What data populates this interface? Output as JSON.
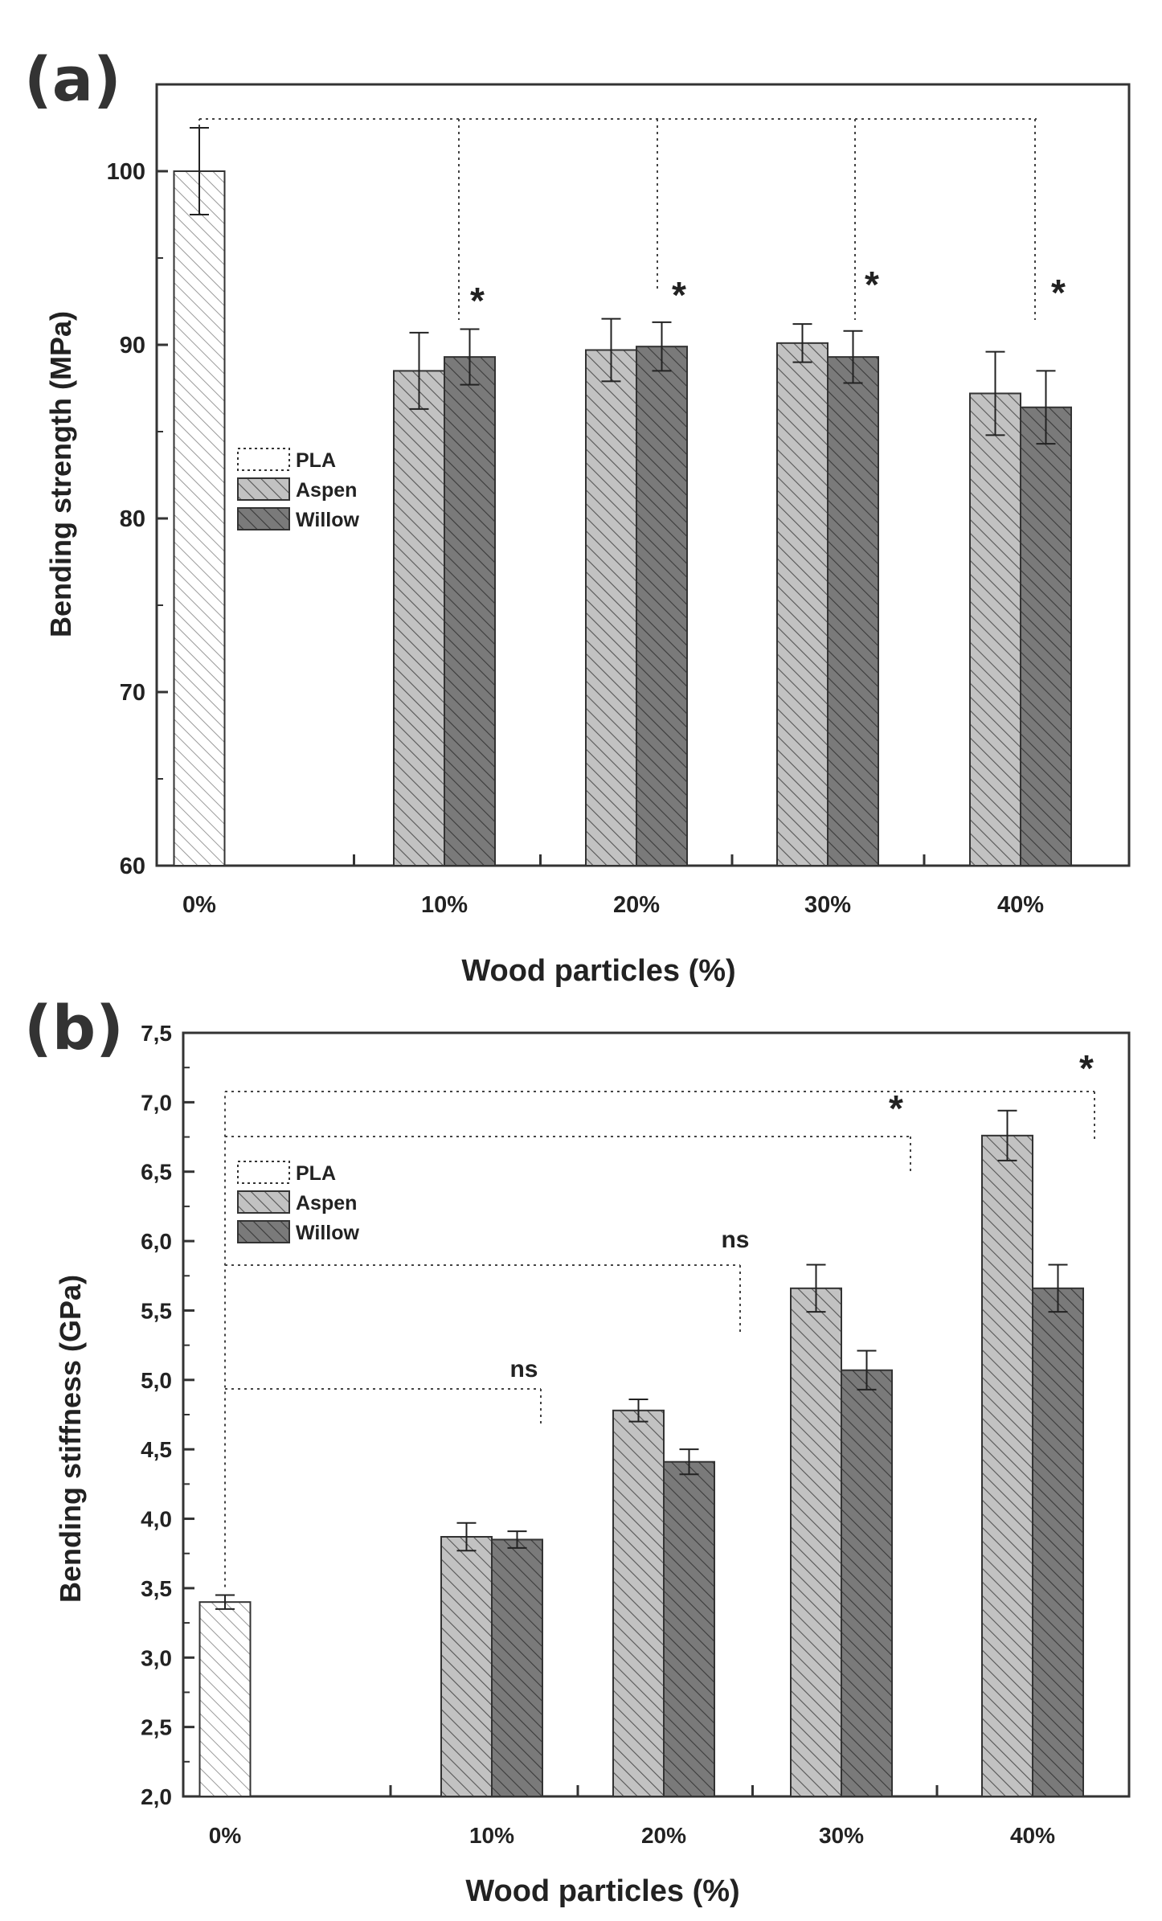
{
  "chart_data": [
    {
      "type": "bar",
      "panel_label": "(a)",
      "title": "",
      "xlabel": "Wood particles (%)",
      "ylabel": "Bending strength (MPa)",
      "categories": [
        "0%",
        "10%",
        "20%",
        "30%",
        "40%"
      ],
      "ylim": [
        60,
        105
      ],
      "yticks": [
        60,
        70,
        80,
        90,
        100
      ],
      "ytick_labels": [
        "60",
        "70",
        "80",
        "90",
        "100"
      ],
      "legend": [
        "PLA",
        "Aspen",
        "Willow"
      ],
      "legend_position": "middle-left",
      "series": [
        {
          "name": "PLA",
          "values": [
            100,
            null,
            null,
            null,
            null
          ],
          "errors": [
            2.5,
            null,
            null,
            null,
            null
          ]
        },
        {
          "name": "Aspen",
          "values": [
            null,
            88.5,
            89.7,
            90.1,
            87.2
          ],
          "errors": [
            null,
            2.2,
            1.8,
            1.1,
            2.4
          ]
        },
        {
          "name": "Willow",
          "values": [
            null,
            89.3,
            89.9,
            89.3,
            86.4
          ],
          "errors": [
            null,
            1.6,
            1.4,
            1.5,
            2.1
          ]
        }
      ],
      "significance": [
        {
          "category": "10%",
          "label": "*"
        },
        {
          "category": "20%",
          "label": "*"
        },
        {
          "category": "30%",
          "label": "*"
        },
        {
          "category": "40%",
          "label": "*"
        }
      ]
    },
    {
      "type": "bar",
      "panel_label": "(b)",
      "title": "",
      "xlabel": "Wood particles (%)",
      "ylabel": "Bending stiffness (GPa)",
      "categories": [
        "0%",
        "10%",
        "20%",
        "30%",
        "40%"
      ],
      "ylim": [
        2.0,
        7.5
      ],
      "yticks": [
        2.0,
        2.5,
        3.0,
        3.5,
        4.0,
        4.5,
        5.0,
        5.5,
        6.0,
        6.5,
        7.0,
        7.5
      ],
      "ytick_labels": [
        "2,0",
        "2,5",
        "3,0",
        "3,5",
        "4,0",
        "4,5",
        "5,0",
        "5,5",
        "6,0",
        "6,5",
        "7,0",
        "7,5"
      ],
      "legend": [
        "PLA",
        "Aspen",
        "Willow"
      ],
      "legend_position": "top-left",
      "series": [
        {
          "name": "PLA",
          "values": [
            3.4,
            null,
            null,
            null,
            null
          ],
          "errors": [
            0.05,
            null,
            null,
            null,
            null
          ]
        },
        {
          "name": "Aspen",
          "values": [
            null,
            3.87,
            4.78,
            5.66,
            6.76
          ],
          "errors": [
            null,
            0.1,
            0.08,
            0.17,
            0.18
          ]
        },
        {
          "name": "Willow",
          "values": [
            null,
            3.85,
            4.41,
            5.07,
            5.66
          ],
          "errors": [
            null,
            0.06,
            0.09,
            0.14,
            0.17
          ]
        }
      ],
      "significance": [
        {
          "category": "10%",
          "label": "ns"
        },
        {
          "category": "20%",
          "label": "ns"
        },
        {
          "category": "30%",
          "label": "*"
        },
        {
          "category": "40%",
          "label": "*"
        }
      ]
    }
  ],
  "colors": {
    "pla": "#ffffff",
    "aspen": "#c2c2c2",
    "willow": "#7a7a7a",
    "axis": "#333333"
  }
}
